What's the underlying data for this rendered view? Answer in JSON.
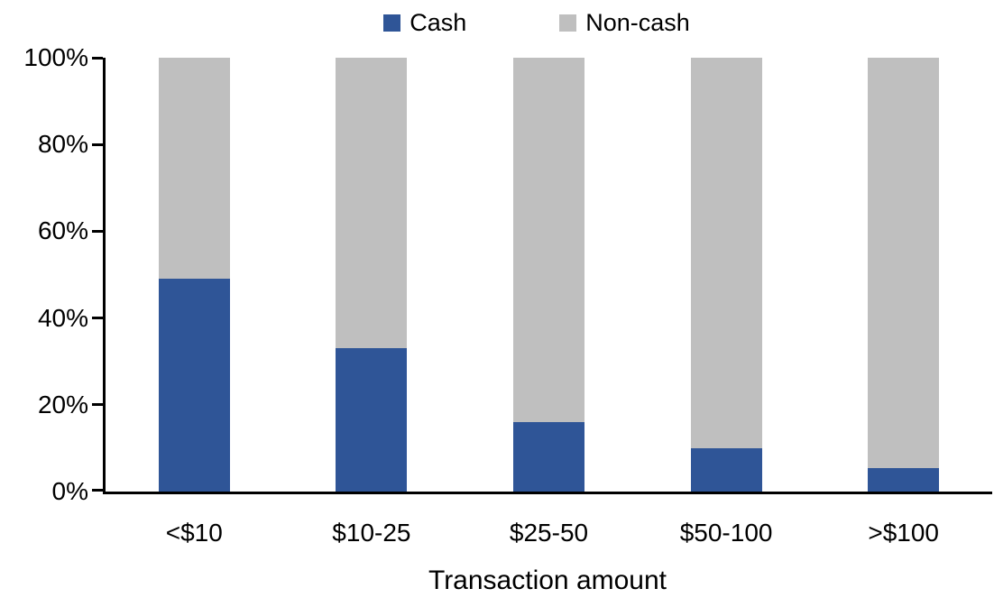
{
  "chart_data": {
    "type": "bar",
    "stacked": true,
    "title": "",
    "xlabel": "Transaction amount",
    "ylabel": "",
    "categories": [
      "<$10",
      "$10-25",
      "$25-50",
      "$50-100",
      ">$100"
    ],
    "series": [
      {
        "name": "Cash",
        "color": "#2F5597",
        "values": [
          49,
          33,
          16,
          10,
          5.5
        ]
      },
      {
        "name": "Non-cash",
        "color": "#BFBFBF",
        "values": [
          51,
          67,
          84,
          90,
          94.5
        ]
      }
    ],
    "ylim": [
      0,
      100
    ],
    "yticks": [
      0,
      20,
      40,
      60,
      80,
      100
    ],
    "ytick_labels": [
      "0%",
      "20%",
      "40%",
      "60%",
      "80%",
      "100%"
    ],
    "grid": false,
    "legend_position": "top"
  },
  "colors": {
    "background": "#FFFFFF",
    "axis": "#000000",
    "text": "#000000"
  }
}
